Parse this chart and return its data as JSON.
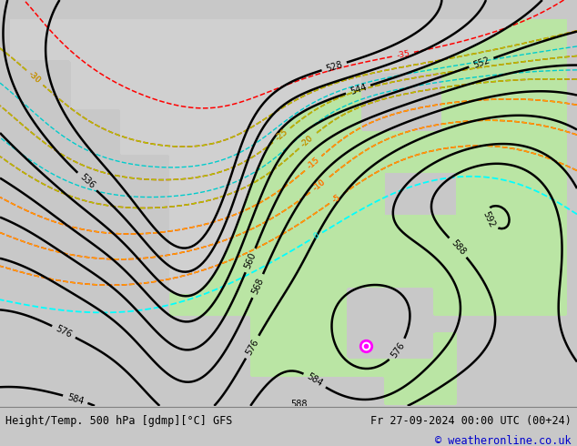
{
  "title_left": "Height/Temp. 500 hPa [gdmp][°C] GFS",
  "title_right": "Fr 27-09-2024 00:00 UTC (00+24)",
  "copyright": "© weatheronline.co.uk",
  "background_color": "#c8c8c8",
  "land_color": "#d0d0d0",
  "green_color": "#b8e8a0",
  "fig_width": 6.34,
  "fig_height": 4.9,
  "dpi": 100,
  "bottom_bar_color": "#e8e8e8",
  "title_color": "#000000",
  "copyright_color": "#0000cc"
}
